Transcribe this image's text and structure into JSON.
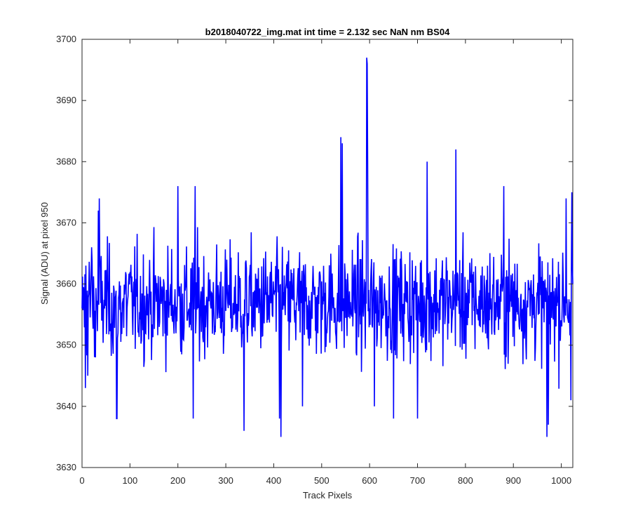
{
  "chart_data": {
    "type": "line",
    "title": "b2018040722_img.mat int time = 2.132 sec  NaN nm BS04",
    "xlabel": "Track Pixels",
    "ylabel": "Signal (ADU) at pixel 950",
    "xlim": [
      0,
      1024
    ],
    "ylim": [
      3630,
      3700
    ],
    "xticks": [
      0,
      100,
      200,
      300,
      400,
      500,
      600,
      700,
      800,
      900,
      1000
    ],
    "yticks": [
      3630,
      3640,
      3650,
      3660,
      3670,
      3680,
      3690,
      3700
    ],
    "grid": false,
    "legend": "none",
    "series": [
      {
        "color": "#0000ff",
        "points_note_approx": true,
        "x": [
          0,
          7,
          8,
          12,
          20,
          28,
          34,
          36,
          72,
          73,
          200,
          232,
          236,
          338,
          412,
          415,
          460,
          540,
          543,
          594,
          595,
          596,
          600,
          610,
          650,
          700,
          720,
          780,
          880,
          970,
          973,
          1010,
          1020,
          1022,
          1024
        ],
        "y": [
          3656,
          3643,
          3663,
          3645,
          3666,
          3648,
          3672,
          3674,
          3638,
          3638,
          3676,
          3638,
          3676,
          3636,
          3638,
          3635,
          3640,
          3684,
          3683,
          3697,
          3696,
          3680,
          3656,
          3640,
          3638,
          3638,
          3680,
          3682,
          3676,
          3635,
          3637,
          3674,
          3641,
          3675,
          3660
        ]
      }
    ],
    "series_mean": 3657,
    "noise_sigma": 6
  }
}
